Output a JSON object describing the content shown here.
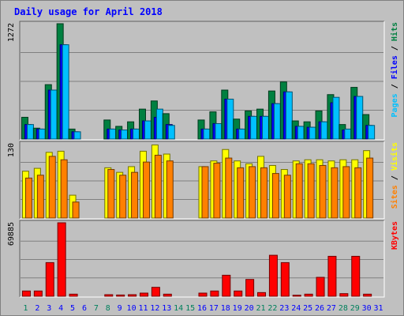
{
  "chart_data": {
    "type": "bar",
    "title": "Daily usage for April 2018",
    "days": [
      "1",
      "2",
      "3",
      "4",
      "5",
      "6",
      "7",
      "8",
      "9",
      "10",
      "11",
      "12",
      "13",
      "14",
      "15",
      "16",
      "17",
      "18",
      "19",
      "20",
      "21",
      "22",
      "23",
      "24",
      "25",
      "26",
      "27",
      "28",
      "29",
      "30",
      "31"
    ],
    "weekend_days": [
      1,
      7,
      8,
      14,
      15,
      21,
      22,
      28,
      29
    ],
    "panels": [
      {
        "id": "hits-files-pages",
        "axis_max_label": "1272",
        "ymax": 1272,
        "legend": [
          {
            "text": "Pages",
            "color": "#00c0ff"
          },
          {
            "text": "Files",
            "color": "#0000ff"
          },
          {
            "text": "Hits",
            "color": "#008040"
          }
        ],
        "series": [
          {
            "name": "Hits",
            "color": "#008040",
            "values": [
              240,
              120,
              600,
              1272,
              110,
              0,
              0,
              210,
              140,
              190,
              330,
              420,
              280,
              0,
              0,
              210,
              300,
              540,
              220,
              310,
              330,
              530,
              630,
              200,
              190,
              310,
              490,
              160,
              570,
              270,
              0
            ]
          },
          {
            "name": "Files",
            "color": "#0000ff",
            "values": [
              160,
              110,
              540,
              1040,
              80,
              0,
              0,
              110,
              100,
              110,
              200,
              240,
              160,
              0,
              0,
              110,
              170,
              440,
              110,
              250,
              250,
              390,
              520,
              140,
              130,
              190,
              400,
              100,
              470,
              150,
              0
            ]
          },
          {
            "name": "Pages",
            "color": "#00c0ff",
            "values": [
              160,
              110,
              540,
              1040,
              80,
              0,
              0,
              110,
              100,
              110,
              200,
              330,
              150,
              0,
              0,
              110,
              170,
              440,
              110,
              250,
              250,
              390,
              520,
              140,
              130,
              190,
              460,
              110,
              470,
              150,
              0
            ]
          }
        ]
      },
      {
        "id": "visits-sites",
        "axis_max_label": "130",
        "ymax": 130,
        "legend": [
          {
            "text": "Sites",
            "color": "#ff8000"
          },
          {
            "text": "Visits",
            "color": "#ffff00"
          }
        ],
        "series": [
          {
            "name": "Visits",
            "color": "#ffff00",
            "values": [
              82,
              87,
              115,
              117,
              40,
              0,
              0,
              88,
              80,
              90,
              117,
              128,
              112,
              0,
              0,
              90,
              100,
              120,
              100,
              95,
              108,
              92,
              85,
              100,
              102,
              102,
              100,
              102,
              102,
              118,
              0
            ]
          },
          {
            "name": "Sites",
            "color": "#ff8000",
            "values": [
              70,
              75,
              108,
              102,
              28,
              0,
              0,
              85,
              75,
              80,
              98,
              110,
              100,
              0,
              0,
              90,
              96,
              105,
              88,
              90,
              88,
              78,
              75,
              95,
              95,
              92,
              88,
              90,
              88,
              105,
              0
            ]
          }
        ]
      },
      {
        "id": "kbytes",
        "axis_max_label": "69885",
        "ymax": 69885,
        "legend": [
          {
            "text": "KBytes",
            "color": "#ff0000"
          }
        ],
        "series": [
          {
            "name": "KBytes",
            "color": "#ff0000",
            "values": [
              5000,
              5000,
              32000,
              69885,
              2000,
              0,
              0,
              1500,
              1200,
              1500,
              3000,
              8500,
              2000,
              0,
              0,
              3000,
              5000,
              20000,
              5000,
              16000,
              3500,
              39000,
              32000,
              1000,
              2000,
              18000,
              38000,
              2500,
              38000,
              2000,
              0
            ]
          }
        ]
      }
    ],
    "colors": {
      "background": "#c0c0c0",
      "frame": "#ffffff",
      "title": "#0000ff",
      "gridline": "#808080",
      "weekend_label": "#00805c",
      "weekday_label": "#0000ff"
    }
  }
}
